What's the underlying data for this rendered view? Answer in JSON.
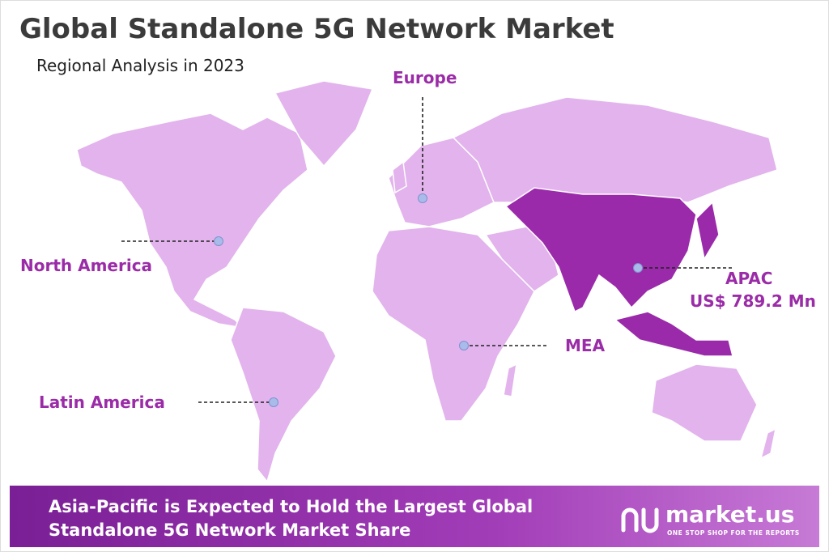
{
  "header": {
    "title": "Global Standalone 5G Network Market",
    "subtitle": "Regional Analysis in 2023"
  },
  "regions": [
    {
      "label": "Europe"
    },
    {
      "label": "North America"
    },
    {
      "label": "Latin America"
    },
    {
      "label": "MEA"
    },
    {
      "label": "APAC",
      "value_label": "US$ 789.2 Mn"
    }
  ],
  "footer": {
    "lines": [
      "Asia-Pacific is Expected to Hold the Largest Global",
      "Standalone 5G Network Market Share"
    ],
    "brand": "market.us",
    "tagline": "ONE STOP SHOP FOR THE REPORTS"
  }
}
